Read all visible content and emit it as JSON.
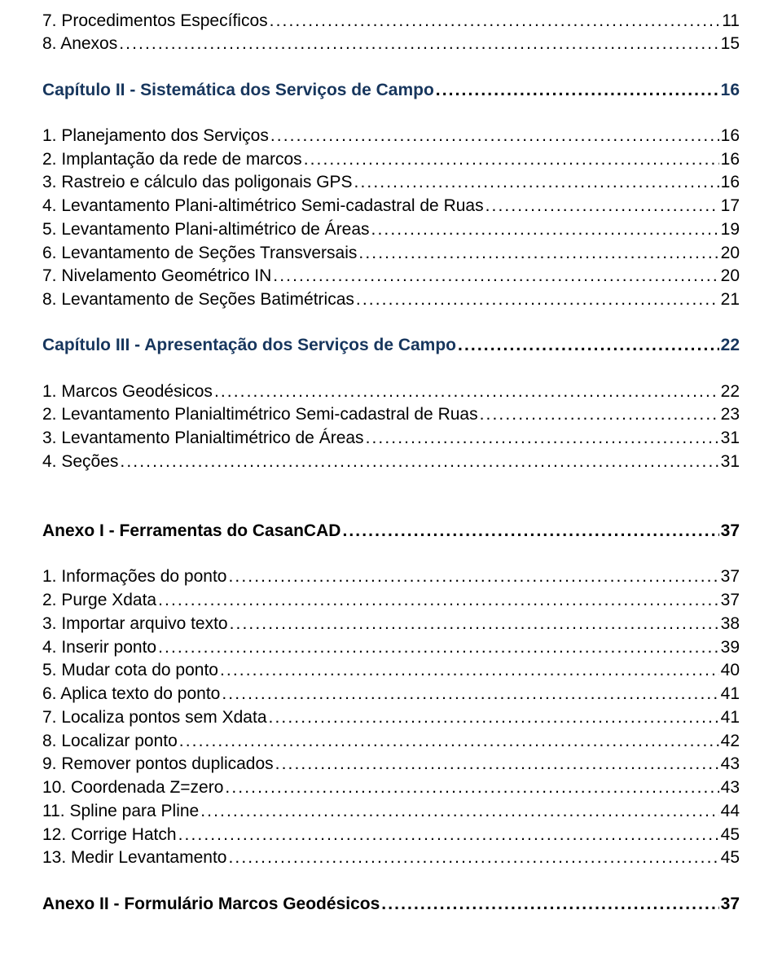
{
  "colors": {
    "text": "#000000",
    "blue": "#17365d",
    "background": "#ffffff"
  },
  "typography": {
    "font_family": "Arial",
    "font_size_pt": 16,
    "bold_weight": 700,
    "normal_weight": 400
  },
  "toc": [
    {
      "label": "7. Procedimentos Específicos",
      "page": "11",
      "bold": false,
      "blue": false
    },
    {
      "label": "8. Anexos",
      "page": "15",
      "bold": false,
      "blue": false
    },
    {
      "gap": "section"
    },
    {
      "label": "Capítulo II - Sistemática dos Serviços de Campo",
      "page": "16",
      "bold": true,
      "blue": true
    },
    {
      "gap": "section"
    },
    {
      "label": "1. Planejamento dos Serviços",
      "page": "16",
      "bold": false,
      "blue": false
    },
    {
      "label": "2. Implantação da rede de marcos",
      "page": "16",
      "bold": false,
      "blue": false
    },
    {
      "label": "3. Rastreio e cálculo das poligonais GPS",
      "page": "16",
      "bold": false,
      "blue": false
    },
    {
      "label": "4. Levantamento Plani-altimétrico Semi-cadastral de Ruas",
      "page": "17",
      "bold": false,
      "blue": false
    },
    {
      "label": "5. Levantamento Plani-altimétrico de Áreas",
      "page": "19",
      "bold": false,
      "blue": false
    },
    {
      "label": "6. Levantamento de Seções Transversais",
      "page": "20",
      "bold": false,
      "blue": false
    },
    {
      "label": "7. Nivelamento Geométrico IN",
      "page": "20",
      "bold": false,
      "blue": false
    },
    {
      "label": "8. Levantamento de Seções Batimétricas",
      "page": "21",
      "bold": false,
      "blue": false
    },
    {
      "gap": "section"
    },
    {
      "label": "Capítulo III - Apresentação dos Serviços de Campo",
      "page": "22",
      "bold": true,
      "blue": true
    },
    {
      "gap": "section"
    },
    {
      "label": "1. Marcos Geodésicos",
      "page": "22",
      "bold": false,
      "blue": false
    },
    {
      "label": "2. Levantamento Planialtimétrico Semi-cadastral de Ruas",
      "page": "23",
      "bold": false,
      "blue": false
    },
    {
      "label": "3. Levantamento Planialtimétrico de Áreas",
      "page": "31",
      "bold": false,
      "blue": false
    },
    {
      "label": "4. Seções",
      "page": "31",
      "bold": false,
      "blue": false
    },
    {
      "gap": "big"
    },
    {
      "label": "Anexo I - Ferramentas do CasanCAD",
      "page": "37",
      "bold": true,
      "blue": false
    },
    {
      "gap": "section"
    },
    {
      "label": "1. Informações do ponto",
      "page": "37",
      "bold": false,
      "blue": false
    },
    {
      "label": "2. Purge Xdata",
      "page": "37",
      "bold": false,
      "blue": false
    },
    {
      "label": "3. Importar arquivo texto",
      "page": "38",
      "bold": false,
      "blue": false
    },
    {
      "label": "4. Inserir ponto",
      "page": "39",
      "bold": false,
      "blue": false
    },
    {
      "label": "5. Mudar cota do ponto",
      "page": "40",
      "bold": false,
      "blue": false
    },
    {
      "label": "6. Aplica texto do ponto",
      "page": "41",
      "bold": false,
      "blue": false
    },
    {
      "label": "7. Localiza pontos sem Xdata",
      "page": "41",
      "bold": false,
      "blue": false
    },
    {
      "label": "8. Localizar ponto",
      "page": "42",
      "bold": false,
      "blue": false
    },
    {
      "label": "9. Remover pontos duplicados",
      "page": "43",
      "bold": false,
      "blue": false
    },
    {
      "label": "10. Coordenada Z=zero",
      "page": "43",
      "bold": false,
      "blue": false
    },
    {
      "label": "11. Spline para Pline",
      "page": "44",
      "bold": false,
      "blue": false
    },
    {
      "label": "12. Corrige Hatch",
      "page": "45",
      "bold": false,
      "blue": false
    },
    {
      "label": "13. Medir Levantamento",
      "page": "45",
      "bold": false,
      "blue": false
    },
    {
      "gap": "section"
    },
    {
      "label": "Anexo II - Formulário Marcos Geodésicos",
      "page": "37",
      "bold": true,
      "blue": false
    }
  ]
}
